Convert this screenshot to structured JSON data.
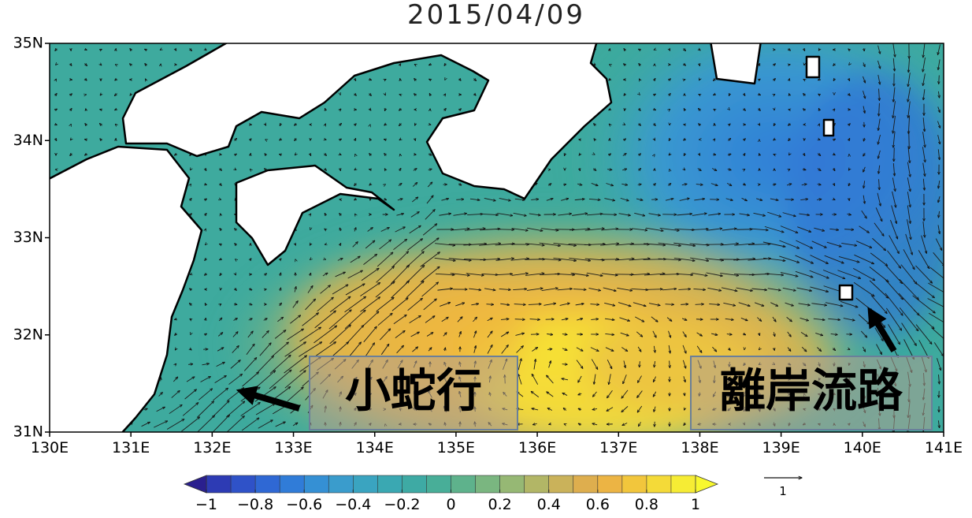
{
  "title": "2015/04/09",
  "axes": {
    "latitude_ticks": [
      {
        "value": 35,
        "label": "35N"
      },
      {
        "value": 34,
        "label": "34N"
      },
      {
        "value": 33,
        "label": "33N"
      },
      {
        "value": 32,
        "label": "32N"
      },
      {
        "value": 31,
        "label": "31N"
      }
    ],
    "longitude_ticks": [
      {
        "value": 130,
        "label": "130E"
      },
      {
        "value": 131,
        "label": "131E"
      },
      {
        "value": 132,
        "label": "132E"
      },
      {
        "value": 133,
        "label": "133E"
      },
      {
        "value": 134,
        "label": "134E"
      },
      {
        "value": 135,
        "label": "135E"
      },
      {
        "value": 136,
        "label": "136E"
      },
      {
        "value": 137,
        "label": "137E"
      },
      {
        "value": 138,
        "label": "138E"
      },
      {
        "value": 139,
        "label": "139E"
      },
      {
        "value": 140,
        "label": "140E"
      },
      {
        "value": 141,
        "label": "141E"
      }
    ]
  },
  "colorbar": {
    "ticks": [
      {
        "value": -1,
        "label": "−1"
      },
      {
        "value": -0.8,
        "label": "−0.8"
      },
      {
        "value": -0.6,
        "label": "−0.6"
      },
      {
        "value": -0.4,
        "label": "−0.4"
      },
      {
        "value": -0.2,
        "label": "−0.2"
      },
      0,
      0.2,
      0.4,
      0.6,
      0.8,
      1
    ]
  },
  "reference_vector": 1,
  "annotations": [
    "小蛇行",
    "離岸流路"
  ]
}
